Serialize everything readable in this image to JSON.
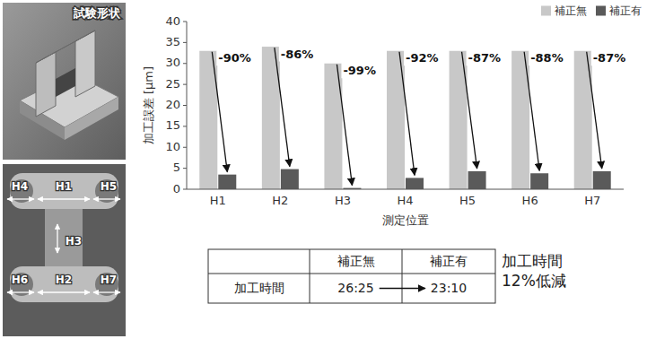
{
  "chart_data": {
    "type": "bar",
    "y_label": "加工誤差 [μm]",
    "x_label": "測定位置",
    "categories": [
      "H1",
      "H2",
      "H3",
      "H4",
      "H5",
      "H6",
      "H7"
    ],
    "series": [
      {
        "name": "補正無",
        "color": "#c8c8c8",
        "values": [
          33,
          34,
          30,
          33,
          33,
          33,
          33
        ]
      },
      {
        "name": "補正有",
        "color": "#5a5a5a",
        "values": [
          3.5,
          4.8,
          0.3,
          2.7,
          4.3,
          3.8,
          4.3
        ]
      }
    ],
    "annotations": [
      "-90%",
      "-86%",
      "-99%",
      "-92%",
      "-87%",
      "-88%",
      "-87%"
    ],
    "ylim": [
      0,
      40
    ],
    "yticks": [
      0,
      5,
      10,
      15,
      20,
      25,
      30,
      35,
      40
    ],
    "grid": false,
    "legend": "upper right"
  },
  "photo": {
    "label": "試験形状"
  },
  "diagram": {
    "labels": [
      "H4",
      "H1",
      "H5",
      "H3",
      "H6",
      "H2",
      "H7"
    ]
  },
  "table": {
    "columns": [
      "補正無",
      "補正有"
    ],
    "rows": [
      {
        "label": "加工時間",
        "values": [
          "26:25",
          "23:10"
        ]
      }
    ]
  },
  "note": [
    "加工時間",
    "12%低減"
  ]
}
